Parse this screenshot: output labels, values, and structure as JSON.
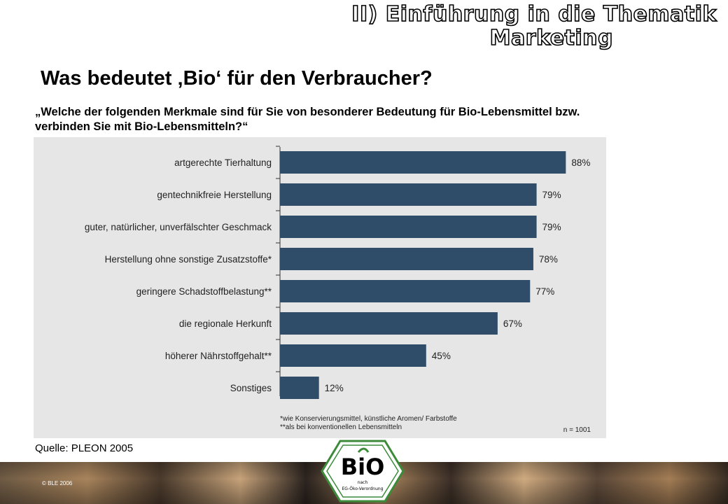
{
  "header": {
    "line1": "II) Einführung in die Thematik",
    "line2": "Marketing"
  },
  "page_title": "Was bedeutet ‚Bio‘ für den Verbraucher?",
  "question": "„Welche der folgenden Merkmale sind für Sie von besonderer Bedeutung für Bio-Lebensmittel bzw. verbinden Sie mit Bio-Lebensmitteln?“",
  "source": "Quelle: PLEON 2005",
  "copyright": "© BLE 2006",
  "logo": {
    "text": "BiO",
    "subtext_line1": "nach",
    "subtext_line2": "EG-Öko-Verordnung"
  },
  "colors": {
    "bar": "#2f4d68",
    "chart_background": "#e6e6e6",
    "logo_green": "#3d8b3a"
  },
  "chart_data": {
    "type": "bar",
    "orientation": "horizontal",
    "categories": [
      "artgerechte Tierhaltung",
      "gentechnikfreie Herstellung",
      "guter, natürlicher, unverfälschter Geschmack",
      "Herstellung ohne sonstige Zusatzstoffe*",
      "geringere Schadstoffbelastung**",
      "die regionale Herkunft",
      "höherer Nährstoffgehalt**",
      "Sonstiges"
    ],
    "values": [
      88,
      79,
      79,
      78,
      77,
      67,
      45,
      12
    ],
    "value_labels": [
      "88%",
      "79%",
      "79%",
      "78%",
      "77%",
      "67%",
      "45%",
      "12%"
    ],
    "unit": "%",
    "xlim": [
      0,
      100
    ],
    "grid": false,
    "footnotes": [
      "*wie Konservierungsmittel, künstliche Aromen/ Farbstoffe",
      "**als bei konventionellen Lebensmitteln"
    ],
    "sample_size": "n = 1001"
  }
}
